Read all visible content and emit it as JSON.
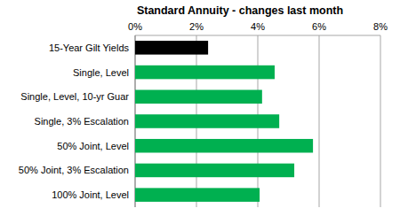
{
  "chart_data": {
    "type": "bar",
    "title": "Standard Annuity - changes last month",
    "orientation": "horizontal",
    "categories": [
      "15-Year Gilt Yields",
      "Single, Level",
      "Single, Level, 10-yr Guar",
      "Single, 3% Escalation",
      "50% Joint, Level",
      "50% Joint, 3% Escalation",
      "100% Joint, Level"
    ],
    "values": [
      2.38,
      4.55,
      4.14,
      4.7,
      5.8,
      5.19,
      4.06
    ],
    "colors": [
      "#000000",
      "#00b050",
      "#00b050",
      "#00b050",
      "#00b050",
      "#00b050",
      "#00b050"
    ],
    "xlim": [
      0,
      8
    ],
    "xticks": [
      {
        "value": 0,
        "label": "0%"
      },
      {
        "value": 2,
        "label": "2%"
      },
      {
        "value": 4,
        "label": "4%"
      },
      {
        "value": 6,
        "label": "6%"
      },
      {
        "value": 8,
        "label": "8%"
      }
    ],
    "grid": true
  }
}
